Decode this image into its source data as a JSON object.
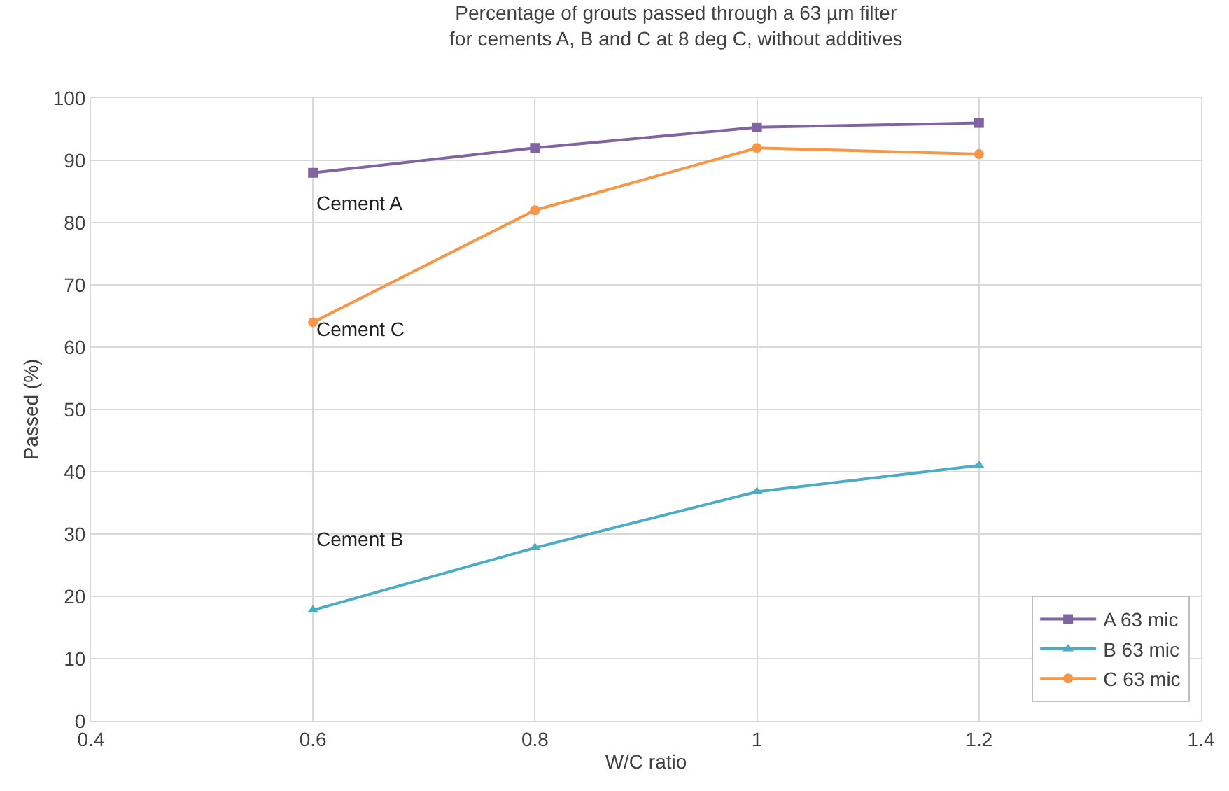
{
  "chart_data": {
    "type": "line",
    "title": "Percentage of grouts passed through a 63 µm filter\nfor cements A, B and C at 8 deg C, without additives",
    "xlabel": "W/C ratio",
    "ylabel": "Passed (%)",
    "x": [
      0.6,
      0.8,
      1,
      1.2
    ],
    "series": [
      {
        "name": "A 63 mic",
        "color": "#8064a2",
        "marker": "square",
        "values": [
          88,
          92,
          95.3,
          96
        ]
      },
      {
        "name": "B 63 mic",
        "color": "#4bacc6",
        "marker": "triangle",
        "values": [
          17.8,
          27.8,
          36.8,
          41
        ]
      },
      {
        "name": "C 63 mic",
        "color": "#f79646",
        "marker": "circle",
        "values": [
          64,
          82,
          92,
          91
        ]
      }
    ],
    "annotations": [
      "Cement A",
      "Cement C",
      "Cement B"
    ],
    "xlim": [
      0.4,
      1.4
    ],
    "xticks": [
      0.4,
      0.6,
      0.8,
      1,
      1.2,
      1.4
    ],
    "ylim": [
      0,
      100
    ],
    "yticks": [
      0,
      10,
      20,
      30,
      40,
      50,
      60,
      70,
      80,
      90,
      100
    ],
    "grid": true,
    "legend": "bottom right",
    "line_style": "solid"
  }
}
